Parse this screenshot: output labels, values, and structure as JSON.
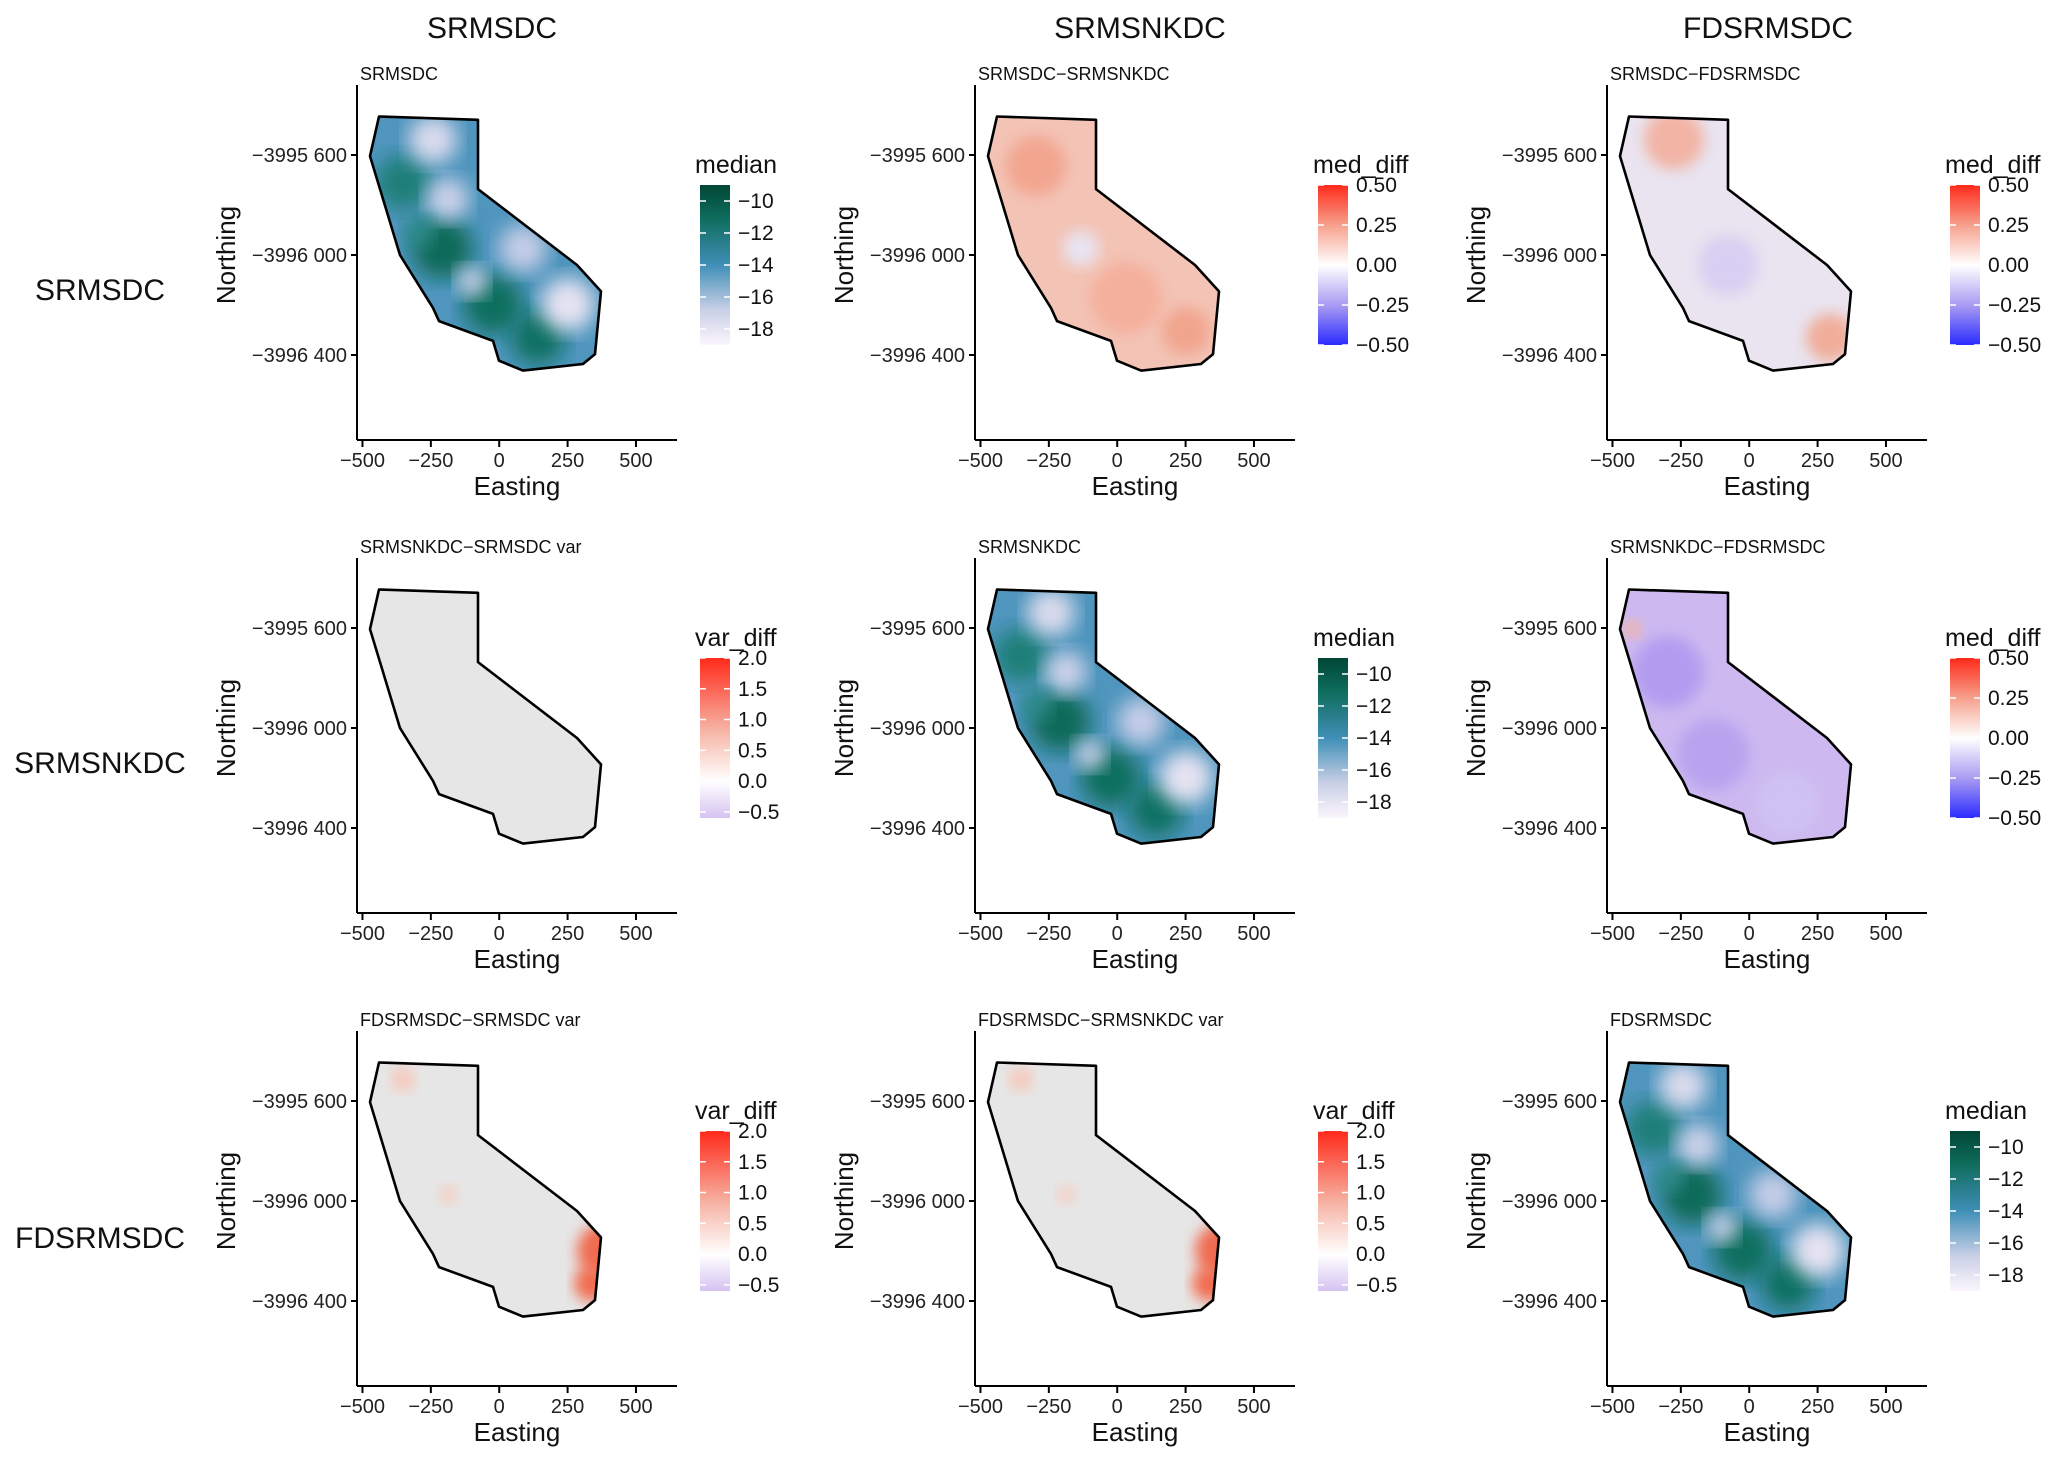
{
  "column_headers": [
    "SRMSDC",
    "SRMSNKDC",
    "FDSRMSDC"
  ],
  "row_headers": [
    "SRMSDC",
    "SRMSNKDC",
    "FDSRMSDC"
  ],
  "colors": {
    "median_low": "#f7f2fa",
    "median_mid_low": "#c9cfe6",
    "median_mid": "#3f8fb7",
    "median_high": "#0e6b5a",
    "median_top": "#014636",
    "diff_neg": "#3b3bff",
    "diff_zero": "#ffffff",
    "diff_pos": "#ff2a1a",
    "var_neg": "#d9c6f2",
    "var_pos": "#ff2a1a",
    "map_fill_neutral": "#e6e6e6"
  },
  "chart_data": [
    {
      "type": "heatmap",
      "panel": "r1c1",
      "title": "SRMSDC",
      "fill_style": "median",
      "xlabel": "Easting",
      "ylabel": "Northing",
      "x_ticks": [
        "−500",
        "−250",
        "0",
        "250",
        "500"
      ],
      "xlim": [
        -520,
        650
      ],
      "y_ticks": [
        "−3995 600",
        "−3996 000",
        "−3996 400"
      ],
      "legend": {
        "title": "median",
        "kind": "median",
        "range": [
          -19,
          -9
        ],
        "ticks": [
          -10,
          -12,
          -14,
          -16,
          -18
        ],
        "tick_labels": [
          "−10",
          "−12",
          "−14",
          "−16",
          "−18"
        ]
      }
    },
    {
      "type": "heatmap",
      "panel": "r1c2",
      "title": "SRMSDC−SRMSNKDC",
      "fill_style": "diff_pos",
      "xlabel": "Easting",
      "ylabel": "Northing",
      "x_ticks": [
        "−500",
        "−250",
        "0",
        "250",
        "500"
      ],
      "xlim": [
        -520,
        650
      ],
      "y_ticks": [
        "−3995 600",
        "−3996 000",
        "−3996 400"
      ],
      "legend": {
        "title": "med_diff",
        "kind": "diff",
        "range": [
          -0.5,
          0.5
        ],
        "ticks": [
          0.5,
          0.25,
          0,
          -0.25,
          -0.5
        ],
        "tick_labels": [
          "0.50",
          "0.25",
          "0.00",
          "−0.25",
          "−0.50"
        ]
      }
    },
    {
      "type": "heatmap",
      "panel": "r1c3",
      "title": "SRMSDC−FDSRMSDC",
      "fill_style": "diff_mixed",
      "xlabel": "Easting",
      "ylabel": "Northing",
      "x_ticks": [
        "−500",
        "−250",
        "0",
        "250",
        "500"
      ],
      "xlim": [
        -520,
        650
      ],
      "y_ticks": [
        "−3995 600",
        "−3996 000",
        "−3996 400"
      ],
      "legend": {
        "title": "med_diff",
        "kind": "diff",
        "range": [
          -0.5,
          0.5
        ],
        "ticks": [
          0.5,
          0.25,
          0,
          -0.25,
          -0.5
        ],
        "tick_labels": [
          "0.50",
          "0.25",
          "0.00",
          "−0.25",
          "−0.50"
        ]
      }
    },
    {
      "type": "heatmap",
      "panel": "r2c1",
      "title": "SRMSNKDC−SRMSDC var",
      "fill_style": "var_flat",
      "xlabel": "Easting",
      "ylabel": "Northing",
      "x_ticks": [
        "−500",
        "−250",
        "0",
        "250",
        "500"
      ],
      "xlim": [
        -520,
        650
      ],
      "y_ticks": [
        "−3995 600",
        "−3996 000",
        "−3996 400"
      ],
      "legend": {
        "title": "var_diff",
        "kind": "var",
        "range": [
          -0.6,
          2.0
        ],
        "ticks": [
          2.0,
          1.5,
          1.0,
          0.5,
          0.0,
          -0.5
        ],
        "tick_labels": [
          "2.0",
          "1.5",
          "1.0",
          "0.5",
          "0.0",
          "−0.5"
        ]
      }
    },
    {
      "type": "heatmap",
      "panel": "r2c2",
      "title": "SRMSNKDC",
      "fill_style": "median",
      "xlabel": "Easting",
      "ylabel": "Northing",
      "x_ticks": [
        "−500",
        "−250",
        "0",
        "250",
        "500"
      ],
      "xlim": [
        -520,
        650
      ],
      "y_ticks": [
        "−3995 600",
        "−3996 000",
        "−3996 400"
      ],
      "legend": {
        "title": "median",
        "kind": "median",
        "range": [
          -19,
          -9
        ],
        "ticks": [
          -10,
          -12,
          -14,
          -16,
          -18
        ],
        "tick_labels": [
          "−10",
          "−12",
          "−14",
          "−16",
          "−18"
        ]
      }
    },
    {
      "type": "heatmap",
      "panel": "r2c3",
      "title": "SRMSNKDC−FDSRMSDC",
      "fill_style": "diff_neg",
      "xlabel": "Easting",
      "ylabel": "Northing",
      "x_ticks": [
        "−500",
        "−250",
        "0",
        "250",
        "500"
      ],
      "xlim": [
        -520,
        650
      ],
      "y_ticks": [
        "−3995 600",
        "−3996 000",
        "−3996 400"
      ],
      "legend": {
        "title": "med_diff",
        "kind": "diff",
        "range": [
          -0.5,
          0.5
        ],
        "ticks": [
          0.5,
          0.25,
          0,
          -0.25,
          -0.5
        ],
        "tick_labels": [
          "0.50",
          "0.25",
          "0.00",
          "−0.25",
          "−0.50"
        ]
      }
    },
    {
      "type": "heatmap",
      "panel": "r3c1",
      "title": "FDSRMSDC−SRMSDC var",
      "fill_style": "var_edge",
      "xlabel": "Easting",
      "ylabel": "Northing",
      "x_ticks": [
        "−500",
        "−250",
        "0",
        "250",
        "500"
      ],
      "xlim": [
        -520,
        650
      ],
      "y_ticks": [
        "−3995 600",
        "−3996 000",
        "−3996 400"
      ],
      "legend": {
        "title": "var_diff",
        "kind": "var",
        "range": [
          -0.6,
          2.0
        ],
        "ticks": [
          2.0,
          1.5,
          1.0,
          0.5,
          0.0,
          -0.5
        ],
        "tick_labels": [
          "2.0",
          "1.5",
          "1.0",
          "0.5",
          "0.0",
          "−0.5"
        ]
      }
    },
    {
      "type": "heatmap",
      "panel": "r3c2",
      "title": "FDSRMSDC−SRMSNKDC var",
      "fill_style": "var_edge",
      "xlabel": "Easting",
      "ylabel": "Northing",
      "x_ticks": [
        "−500",
        "−250",
        "0",
        "250",
        "500"
      ],
      "xlim": [
        -520,
        650
      ],
      "y_ticks": [
        "−3995 600",
        "−3996 000",
        "−3996 400"
      ],
      "legend": {
        "title": "var_diff",
        "kind": "var",
        "range": [
          -0.6,
          2.0
        ],
        "ticks": [
          2.0,
          1.5,
          1.0,
          0.5,
          0.0,
          -0.5
        ],
        "tick_labels": [
          "2.0",
          "1.5",
          "1.0",
          "0.5",
          "0.0",
          "−0.5"
        ]
      }
    },
    {
      "type": "heatmap",
      "panel": "r3c3",
      "title": "FDSRMSDC",
      "fill_style": "median",
      "xlabel": "Easting",
      "ylabel": "Northing",
      "x_ticks": [
        "−500",
        "−250",
        "0",
        "250",
        "500"
      ],
      "xlim": [
        -520,
        650
      ],
      "y_ticks": [
        "−3995 600",
        "−3996 000",
        "−3996 400"
      ],
      "legend": {
        "title": "median",
        "kind": "median",
        "range": [
          -19,
          -9
        ],
        "ticks": [
          -10,
          -12,
          -14,
          -16,
          -18
        ],
        "tick_labels": [
          "−10",
          "−12",
          "−14",
          "−16",
          "−18"
        ]
      }
    }
  ]
}
